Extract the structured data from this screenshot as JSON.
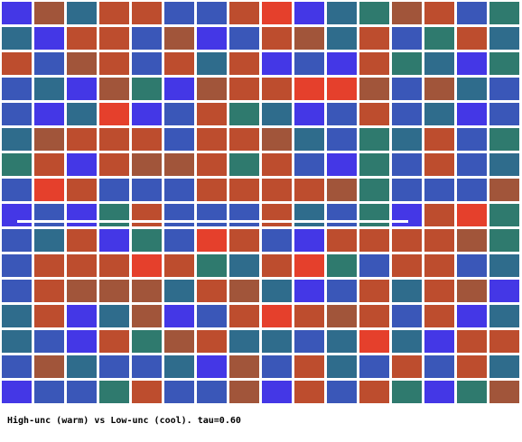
{
  "caption": "High-unc (warm) vs Low-unc (cool). tau=0.60",
  "palette": {
    "B": "#3a57b8",
    "V": "#4437e6",
    "T": "#2f6c8c",
    "G": "#2f7a6e",
    "R": "#bd4d2e",
    "O": "#e5402c",
    "M": "#a1553a"
  },
  "grid": {
    "rows": 16,
    "cols": 16,
    "cells": [
      "VMTRRBBROVTGMRBG",
      "TVRRBMVBRMTRBGRT",
      "RBMRBRTRVBVRGTVG",
      "BTVMGVMRROOMBMTB",
      "BVTOVBRGTVBRBTVB",
      "TMRRRBRRMTBGTRBG",
      "GRVRMMRGRBVGBRBT",
      "BORBBBRRRRMGBBBM",
      "VBVGRBBBRTBGVROG",
      "BTRVGBORBVRRRRMG",
      "BRRRORGTROGBRRBT",
      "BRMMMTRMTVBRTRMV",
      "TRVTMVBRORMRBRVT",
      "TBVRGMRTTBTOTVRR",
      "BMTBBTVMBRTBRBRT",
      "VBBGRBBMVRBRGVGM"
    ]
  }
}
